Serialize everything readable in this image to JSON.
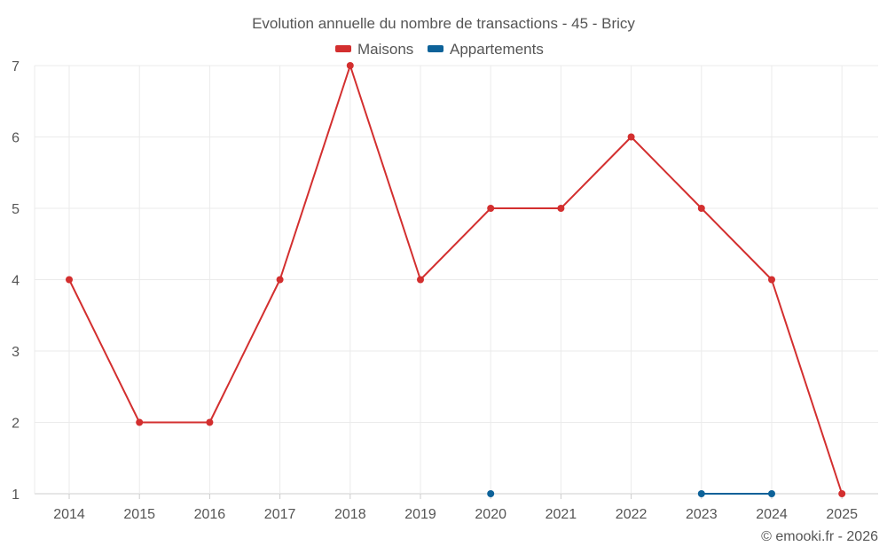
{
  "chart_data": {
    "type": "line",
    "title": "Evolution annuelle du nombre de transactions - 45 - Bricy",
    "categories": [
      "2014",
      "2015",
      "2016",
      "2017",
      "2018",
      "2019",
      "2020",
      "2021",
      "2022",
      "2023",
      "2024",
      "2025"
    ],
    "series": [
      {
        "name": "Maisons",
        "color": "#d32f2f",
        "values": [
          4,
          2,
          2,
          4,
          7,
          4,
          5,
          5,
          6,
          5,
          4,
          1
        ]
      },
      {
        "name": "Appartements",
        "color": "#0d6299",
        "values": [
          null,
          null,
          null,
          null,
          null,
          null,
          1,
          null,
          null,
          1,
          1,
          null
        ]
      }
    ],
    "ylim": [
      1,
      7
    ],
    "yticks": [
      1,
      2,
      3,
      4,
      5,
      6,
      7
    ],
    "grid": true,
    "legend": "top-center",
    "xlabel": "",
    "ylabel": ""
  },
  "credit": "© emooki.fr - 2026"
}
